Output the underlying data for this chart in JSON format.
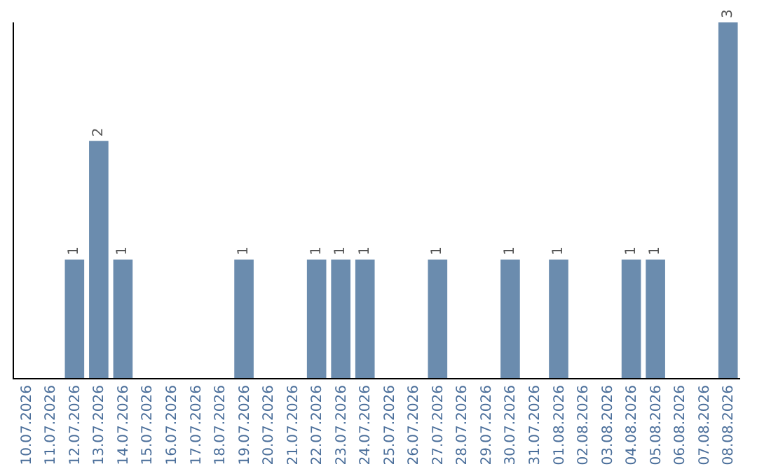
{
  "chart_data": {
    "type": "bar",
    "categories": [
      "10.07.2026",
      "11.07.2026",
      "12.07.2026",
      "13.07.2026",
      "14.07.2026",
      "15.07.2026",
      "16.07.2026",
      "17.07.2026",
      "18.07.2026",
      "19.07.2026",
      "20.07.2026",
      "21.07.2026",
      "22.07.2026",
      "23.07.2026",
      "24.07.2026",
      "25.07.2026",
      "26.07.2026",
      "27.07.2026",
      "28.07.2026",
      "29.07.2026",
      "30.07.2026",
      "31.07.2026",
      "01.08.2026",
      "02.08.2026",
      "03.08.2026",
      "04.08.2026",
      "05.08.2026",
      "06.08.2026",
      "07.08.2026",
      "08.08.2026"
    ],
    "values": [
      0,
      0,
      1,
      2,
      1,
      0,
      0,
      0,
      0,
      1,
      0,
      0,
      1,
      1,
      1,
      0,
      0,
      1,
      0,
      0,
      1,
      0,
      1,
      0,
      0,
      1,
      1,
      0,
      0,
      3
    ],
    "value_labels": [
      null,
      null,
      "1",
      "2",
      "1",
      null,
      null,
      null,
      null,
      "1",
      null,
      null,
      "1",
      "1",
      "1",
      null,
      null,
      "1",
      null,
      null,
      "1",
      null,
      "1",
      null,
      null,
      "1",
      "1",
      null,
      null,
      "3"
    ],
    "color": "#6b8cae",
    "tick_labels": "x"
  }
}
